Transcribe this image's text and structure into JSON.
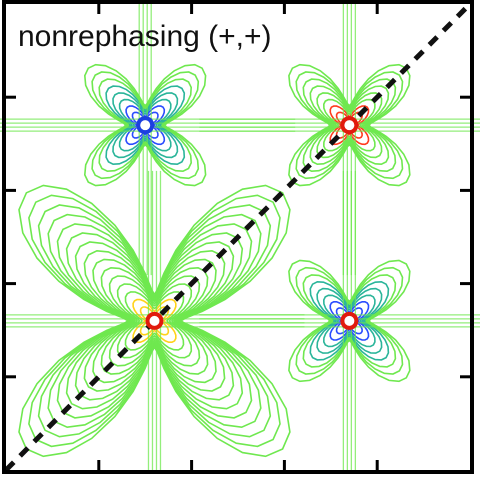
{
  "chart_data": {
    "type": "contour",
    "title": "nonrephasing (+,+)",
    "xlabel": "",
    "ylabel": "",
    "xlim": [
      0,
      1
    ],
    "ylim": [
      0,
      1
    ],
    "xticks": [
      "",
      "",
      "",
      ""
    ],
    "yticks": [
      "",
      "",
      "",
      ""
    ],
    "diagonal": {
      "style": "dashed",
      "from": [
        0,
        0
      ],
      "to": [
        1,
        1
      ]
    },
    "peaks": [
      {
        "name": "cross-peak-upper-left",
        "x": 0.3,
        "y": 0.74,
        "sign": "negative",
        "core_color": "#1d3fe0"
      },
      {
        "name": "diagonal-peak-upper-right",
        "x": 0.74,
        "y": 0.74,
        "sign": "positive",
        "core_color": "#e11a0d"
      },
      {
        "name": "diagonal-peak-lower-left",
        "x": 0.32,
        "y": 0.32,
        "sign": "positive",
        "core_color": "#e11a0d"
      },
      {
        "name": "cross-peak-lower-right",
        "x": 0.74,
        "y": 0.32,
        "sign": "negative",
        "core_color": "#e11a0d"
      }
    ],
    "colors": {
      "weak": "#6fe84f",
      "mid": "#2bb59a",
      "strong_neg": "#2a4cff",
      "strong_pos": "#ff3b1d",
      "hot": "#ffd21a"
    }
  }
}
